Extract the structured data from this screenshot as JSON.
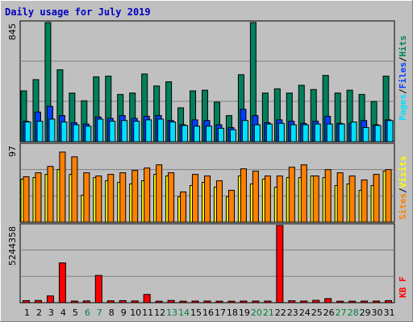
{
  "colors": {
    "background": "#c0c0c0",
    "frame": "#000000",
    "grid": "#808080",
    "title": "#0000c0",
    "weekday_tick": "#000000",
    "weekend_tick": "#008040",
    "hits": "#00805c",
    "files": "#0040ff",
    "pages": "#00e0ff",
    "visits": "#ffff00",
    "sites": "#ff8000",
    "kbytes": "#ff0000"
  },
  "legend_separator": "/",
  "chart_data": [
    {
      "type": "bar",
      "title": "Daily usage for July 2019",
      "ylabel": "845",
      "ylim": [
        0,
        845
      ],
      "grid": true,
      "legend_placement": "right",
      "categories": [
        "1",
        "2",
        "3",
        "4",
        "5",
        "6",
        "7",
        "8",
        "9",
        "10",
        "11",
        "12",
        "13",
        "14",
        "15",
        "16",
        "17",
        "18",
        "19",
        "20",
        "21",
        "22",
        "23",
        "24",
        "25",
        "26",
        "27",
        "28",
        "29",
        "30",
        "31"
      ],
      "weekend_days": [
        "6",
        "7",
        "13",
        "14",
        "20",
        "21",
        "27",
        "28"
      ],
      "series": [
        {
          "name": "Hits",
          "values": [
            360,
            440,
            845,
            510,
            345,
            290,
            460,
            465,
            335,
            345,
            480,
            395,
            425,
            240,
            360,
            365,
            280,
            185,
            475,
            845,
            345,
            375,
            345,
            400,
            370,
            470,
            345,
            365,
            335,
            285,
            465
          ]
        },
        {
          "name": "Files",
          "values": [
            145,
            210,
            250,
            185,
            135,
            125,
            175,
            165,
            185,
            165,
            180,
            185,
            150,
            120,
            155,
            150,
            120,
            100,
            230,
            185,
            135,
            155,
            145,
            130,
            145,
            180,
            130,
            130,
            150,
            120,
            155
          ]
        },
        {
          "name": "Pages",
          "values": [
            140,
            145,
            160,
            140,
            120,
            110,
            160,
            145,
            150,
            145,
            155,
            160,
            140,
            115,
            110,
            110,
            95,
            85,
            150,
            120,
            125,
            130,
            120,
            120,
            125,
            125,
            125,
            140,
            100,
            115,
            150
          ]
        }
      ]
    },
    {
      "type": "bar",
      "ylabel": "97",
      "ylim": [
        0,
        97
      ],
      "grid": true,
      "legend_placement": "right",
      "categories": [
        "1",
        "2",
        "3",
        "4",
        "5",
        "6",
        "7",
        "8",
        "9",
        "10",
        "11",
        "12",
        "13",
        "14",
        "15",
        "16",
        "17",
        "18",
        "19",
        "20",
        "21",
        "22",
        "23",
        "24",
        "25",
        "26",
        "27",
        "28",
        "29",
        "30",
        "31"
      ],
      "series": [
        {
          "name": "Visits",
          "values": [
            54,
            56,
            60,
            66,
            60,
            34,
            56,
            52,
            50,
            48,
            52,
            60,
            58,
            32,
            46,
            50,
            44,
            32,
            58,
            48,
            54,
            44,
            56,
            56,
            58,
            56,
            46,
            48,
            40,
            46,
            64
          ]
        },
        {
          "name": "Sites",
          "values": [
            57,
            62,
            70,
            88,
            82,
            62,
            58,
            60,
            62,
            65,
            68,
            72,
            62,
            38,
            60,
            58,
            52,
            40,
            67,
            64,
            58,
            58,
            69,
            72,
            58,
            66,
            62,
            58,
            53,
            60,
            66
          ]
        }
      ]
    },
    {
      "type": "bar",
      "ylabel": "5244358",
      "ylim": [
        0,
        5244358
      ],
      "grid": true,
      "legend_placement": "right",
      "categories": [
        "1",
        "2",
        "3",
        "4",
        "5",
        "6",
        "7",
        "8",
        "9",
        "10",
        "11",
        "12",
        "13",
        "14",
        "15",
        "16",
        "17",
        "18",
        "19",
        "20",
        "21",
        "22",
        "23",
        "24",
        "25",
        "26",
        "27",
        "28",
        "29",
        "30",
        "31"
      ],
      "series": [
        {
          "name": "KBytes",
          "values": [
            140000,
            150000,
            460000,
            2700000,
            110000,
            120000,
            1850000,
            130000,
            140000,
            120000,
            560000,
            100000,
            150000,
            100000,
            110000,
            110000,
            100000,
            100000,
            110000,
            110000,
            110000,
            5244358,
            130000,
            110000,
            160000,
            280000,
            100000,
            100000,
            110000,
            110000,
            140000
          ]
        }
      ]
    }
  ],
  "side_labels": {
    "top": [
      "Pages",
      "Files",
      "Hits"
    ],
    "middle": [
      "Sites",
      "Visits"
    ],
    "bottom": [
      "KB F"
    ]
  }
}
